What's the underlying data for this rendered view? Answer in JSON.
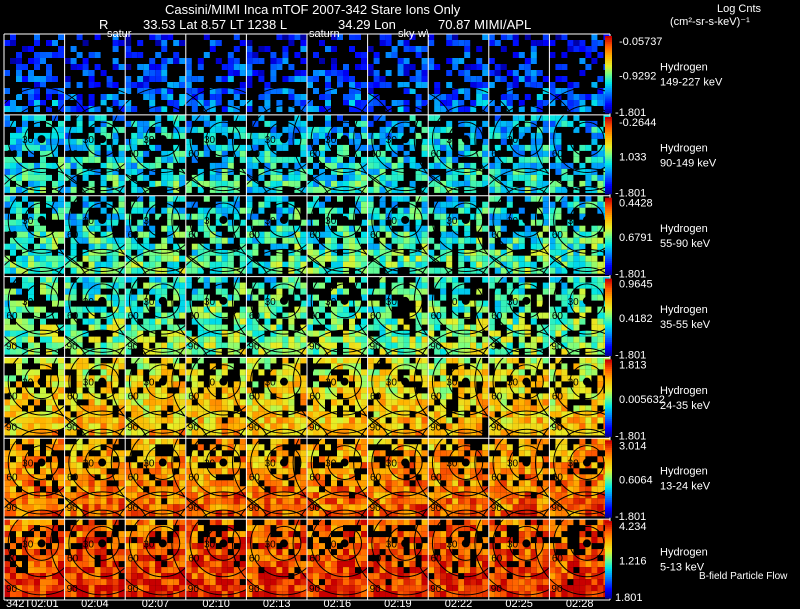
{
  "header": {
    "title": "Cassini/MIMI Inca mTOF  2007-342   Stare   Ions Only",
    "r_label": "R",
    "position_text": "33.53 Lat 8.57 LT 1238 L",
    "lon_text": "34.29 Lon",
    "end_text": "70.87  MIMI/APL",
    "units_title": "Log Cnts",
    "units_line": "(cm²-sr-s-keV)⁻¹"
  },
  "overlay_labels": {
    "saturn_a": "satur",
    "saturn_b": "saturn",
    "sky": "sky-w\\"
  },
  "footer": {
    "bfield_label": "B-field Particle Flow"
  },
  "colors": {
    "background": "#000000",
    "grid_line": "#ffffff",
    "contour": "#000000"
  },
  "chart_data": {
    "type": "heatmap",
    "title": "Cassini/MIMI Inca mTOF  2007-342   Stare   Ions Only",
    "xlabel": "",
    "ylabel": "",
    "x_ticks": [
      "342T02:01",
      "02:04",
      "02:07",
      "02:10",
      "02:13",
      "02:16",
      "02:19",
      "02:22",
      "02:25",
      "02:28"
    ],
    "contour_labels": [
      "30",
      "60",
      "90"
    ],
    "rows": [
      {
        "species": "Hydrogen",
        "energy": "149-227 keV",
        "cbar_max": "-0.05737",
        "cbar_mid": "-0.9292",
        "cbar_min": "-1.801",
        "level": 0.12,
        "density": 0.5
      },
      {
        "species": "Hydrogen",
        "energy": "90-149 keV",
        "cbar_max": "-0.2644",
        "cbar_mid": "1.033",
        "cbar_min": "-1.801",
        "level": 0.3,
        "density": 0.75
      },
      {
        "species": "Hydrogen",
        "energy": "55-90 keV",
        "cbar_max": "0.4428",
        "cbar_mid": "0.6791",
        "cbar_min": "-1.801",
        "level": 0.36,
        "density": 0.78
      },
      {
        "species": "Hydrogen",
        "energy": "35-55 keV",
        "cbar_max": "0.9645",
        "cbar_mid": "0.4182",
        "cbar_min": "-1.801",
        "level": 0.42,
        "density": 0.8
      },
      {
        "species": "Hydrogen",
        "energy": "24-35 keV",
        "cbar_max": "1.813",
        "cbar_mid": "0.005632",
        "cbar_min": "-1.801",
        "level": 0.6,
        "density": 0.92
      },
      {
        "species": "Hydrogen",
        "energy": "13-24 keV",
        "cbar_max": "3.014",
        "cbar_mid": "0.6064",
        "cbar_min": "-1.801",
        "level": 0.72,
        "density": 0.96
      },
      {
        "species": "Hydrogen",
        "energy": "5-13 keV",
        "cbar_max": "4.234",
        "cbar_mid": "1.216",
        "cbar_min": "1.801",
        "level": 0.82,
        "density": 0.98
      }
    ]
  }
}
